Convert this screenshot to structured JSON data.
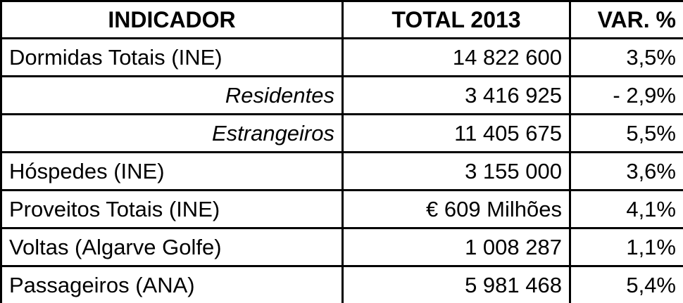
{
  "table": {
    "headers": {
      "indicator": "INDICADOR",
      "total": "TOTAL 2013",
      "variation": "VAR. %"
    },
    "rows": [
      {
        "indicator": "Dormidas Totais (INE)",
        "total": "14 822 600",
        "variation": "3,5%",
        "sub": false
      },
      {
        "indicator": "Residentes",
        "total": "3 416 925",
        "variation": "- 2,9%",
        "sub": true
      },
      {
        "indicator": "Estrangeiros",
        "total": "11 405 675",
        "variation": "5,5%",
        "sub": true
      },
      {
        "indicator": "Hóspedes (INE)",
        "total": "3 155 000",
        "variation": "3,6%",
        "sub": false
      },
      {
        "indicator": "Proveitos Totais (INE)",
        "total": "€ 609 Milhões",
        "variation": "4,1%",
        "sub": false
      },
      {
        "indicator": "Voltas (Algarve Golfe)",
        "total": "1 008 287",
        "variation": "1,1%",
        "sub": false
      },
      {
        "indicator": "Passageiros (ANA)",
        "total": "5 981 468",
        "variation": "5,4%",
        "sub": false
      }
    ]
  }
}
